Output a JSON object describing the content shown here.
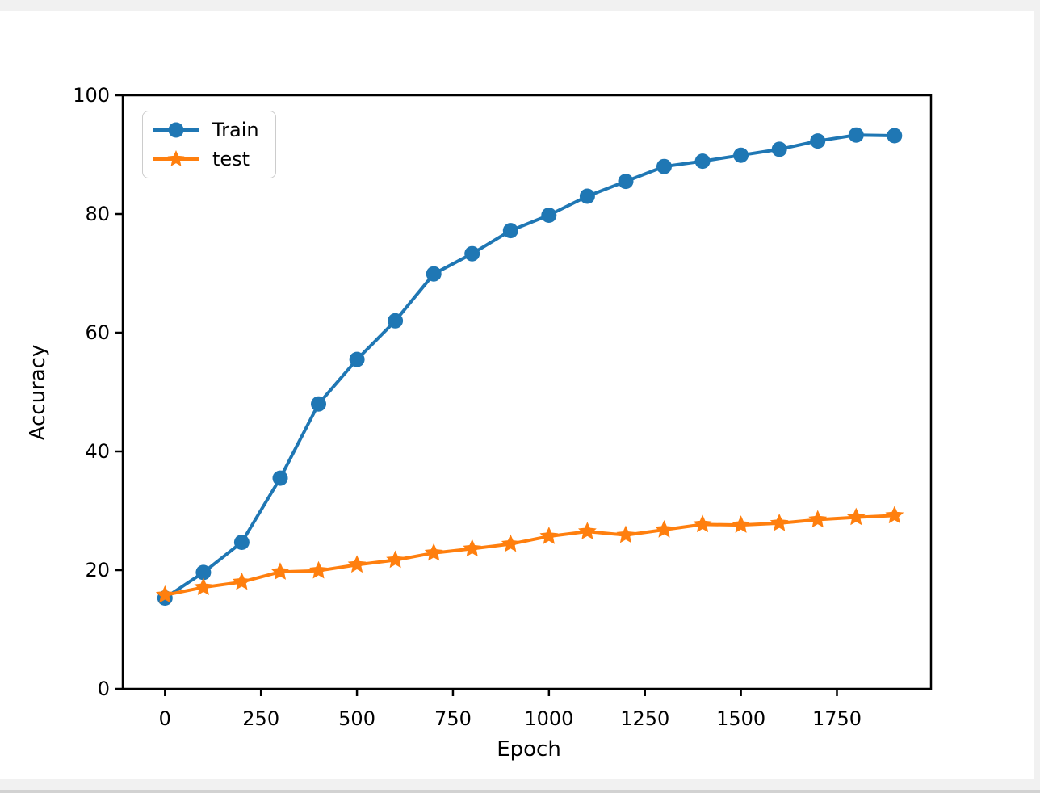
{
  "window": {
    "background": "#ffffff",
    "chrome_color": "#f1f1f1",
    "bottom_edge_color": "#d2d2d2"
  },
  "chart_data": {
    "type": "line",
    "title": "",
    "xlabel": "Epoch",
    "ylabel": "Accuracy",
    "x": [
      0,
      100,
      200,
      300,
      400,
      500,
      600,
      700,
      800,
      900,
      1000,
      1100,
      1200,
      1300,
      1400,
      1500,
      1600,
      1700,
      1800,
      1900
    ],
    "series": [
      {
        "name": "Train",
        "color": "#1f77b4",
        "marker": "circle",
        "values": [
          15.3,
          19.6,
          24.7,
          35.5,
          48.0,
          55.5,
          62.0,
          69.9,
          73.3,
          77.2,
          79.8,
          83.0,
          85.5,
          88.0,
          88.9,
          89.9,
          90.9,
          92.3,
          93.3,
          93.2
        ]
      },
      {
        "name": "test",
        "color": "#ff7f0e",
        "marker": "star",
        "values": [
          15.8,
          17.1,
          18.0,
          19.7,
          19.9,
          20.9,
          21.7,
          22.9,
          23.6,
          24.4,
          25.7,
          26.5,
          25.9,
          26.8,
          27.7,
          27.6,
          27.9,
          28.5,
          28.9,
          29.2
        ]
      }
    ],
    "xticks": [
      0,
      250,
      500,
      750,
      1000,
      1250,
      1500,
      1750
    ],
    "xtick_labels": [
      "0",
      "250",
      "500",
      "750",
      "1000",
      "1250",
      "1500",
      "1750"
    ],
    "yticks": [
      0,
      20,
      40,
      60,
      80,
      100
    ],
    "ytick_labels": [
      "0",
      "20",
      "40",
      "60",
      "80",
      "100"
    ],
    "xlim": [
      -110,
      1995
    ],
    "ylim": [
      0,
      100
    ],
    "grid": false,
    "legend_position": "upper-left",
    "axis_color": "#000000"
  },
  "legend": {
    "items": [
      {
        "label": "Train"
      },
      {
        "label": "test"
      }
    ]
  }
}
